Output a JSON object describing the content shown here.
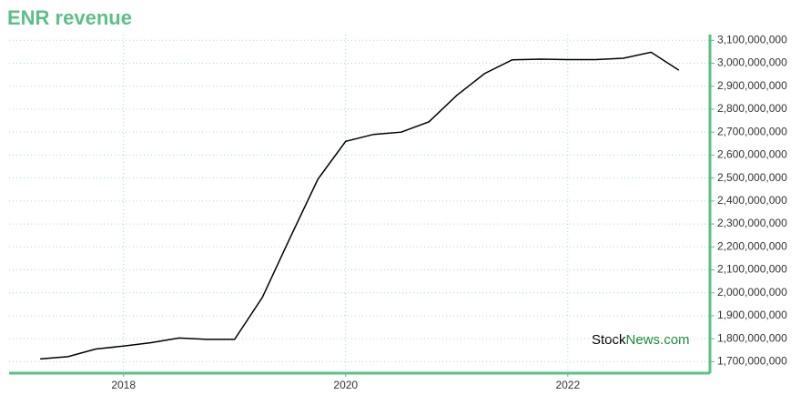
{
  "chart_data": {
    "type": "line",
    "title": "ENR revenue",
    "x": [
      2017.25,
      2017.5,
      2017.75,
      2018.0,
      2018.25,
      2018.5,
      2018.75,
      2019.0,
      2019.25,
      2019.5,
      2019.75,
      2020.0,
      2020.25,
      2020.5,
      2020.75,
      2021.0,
      2021.25,
      2021.5,
      2021.75,
      2022.0,
      2022.25,
      2022.5,
      2022.75,
      2023.0
    ],
    "series": [
      {
        "color": "#000000",
        "values": [
          1712000000,
          1722000000,
          1755000000,
          1768000000,
          1783000000,
          1803000000,
          1797000000,
          1797000000,
          1980000000,
          2240000000,
          2495000000,
          2660000000,
          2690000000,
          2700000000,
          2745000000,
          2860000000,
          2955000000,
          3015000000,
          3018000000,
          3016000000,
          3016000000,
          3022000000,
          3048000000,
          2970000000
        ]
      }
    ],
    "xlim": [
      2016.97,
      2023.28
    ],
    "xticks": [
      2018,
      2020,
      2022
    ],
    "ylim": [
      1650000000,
      3125000000
    ],
    "yticks": [
      {
        "value": 1700000000,
        "label": "1,700,000,000"
      },
      {
        "value": 1800000000,
        "label": "1,800,000,000"
      },
      {
        "value": 1900000000,
        "label": "1,900,000,000"
      },
      {
        "value": 2000000000,
        "label": "2,000,000,000"
      },
      {
        "value": 2100000000,
        "label": "2,100,000,000"
      },
      {
        "value": 2200000000,
        "label": "2,200,000,000"
      },
      {
        "value": 2300000000,
        "label": "2,300,000,000"
      },
      {
        "value": 2400000000,
        "label": "2,400,000,000"
      },
      {
        "value": 2500000000,
        "label": "2,500,000,000"
      },
      {
        "value": 2600000000,
        "label": "2,600,000,000"
      },
      {
        "value": 2700000000,
        "label": "2,700,000,000"
      },
      {
        "value": 2800000000,
        "label": "2,800,000,000"
      },
      {
        "value": 2900000000,
        "label": "2,900,000,000"
      },
      {
        "value": 3000000000,
        "label": "3,000,000,000"
      },
      {
        "value": 3100000000,
        "label": "3,100,000,000"
      }
    ],
    "grid": true,
    "axis_color": "#5cbf87",
    "grid_color": "#a8dcc8",
    "watermark": {
      "part1": "Stock",
      "part2": "News.com",
      "color1": "#000000",
      "color2": "#1a8a3c"
    }
  }
}
